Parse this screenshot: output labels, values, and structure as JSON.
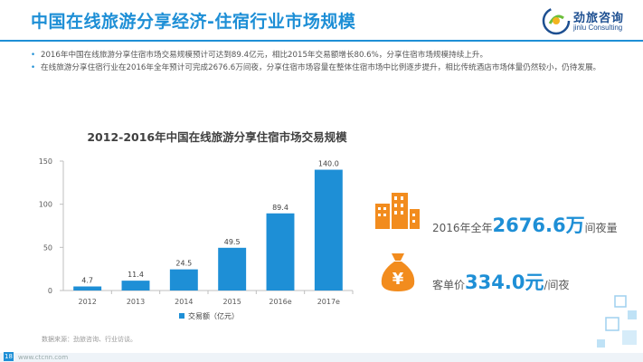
{
  "header": {
    "title": "中国在线旅游分享经济-住宿行业市场规模",
    "logo_name": "劲旅咨询",
    "logo_sub": "jinlu Consulting"
  },
  "bullets": [
    "2016年中国在线旅游分享住宿市场交易规模预计可达到89.4亿元，相比2015年交易额增长80.6%，分享住宿市场规模持续上升。",
    "在线旅游分享住宿行业在2016年全年预计可完成2676.6万间夜，分享住宿市场容量在整体住宿市场中比例逐步提升，相比传统酒店市场体量仍然较小，仍待发展。"
  ],
  "chart_data": {
    "type": "bar",
    "title": "2012-2016年中国在线旅游分享住宿市场交易规模",
    "categories": [
      "2012",
      "2013",
      "2014",
      "2015",
      "2016e",
      "2017e"
    ],
    "series": [
      {
        "name": "交易额（亿元）",
        "values": [
          4.7,
          11.4,
          24.5,
          49.5,
          89.4,
          140.0
        ]
      }
    ],
    "value_labels": [
      "4.7",
      "11.4",
      "24.5",
      "49.5",
      "89.4",
      "140.0"
    ],
    "yticks": [
      "0",
      "50",
      "100",
      "150"
    ],
    "ylim": [
      0,
      150
    ],
    "xlabel": "",
    "ylabel": "",
    "legend_position": "bottom-center",
    "grid": false,
    "bar_color": "#1e8fd6"
  },
  "stats": {
    "nights_prefix": "2016年全年",
    "nights_value": "2676.6万",
    "nights_suffix": "间夜量",
    "price_prefix": "客单价",
    "price_value": "334.0元",
    "price_suffix": "/间夜"
  },
  "icons": {
    "buildings": "buildings-icon",
    "money_bag": "money-bag-icon",
    "money_symbol": "¥"
  },
  "footer": {
    "source": "数据来源：劲旅咨询、行业访谈。",
    "page": "18",
    "url": "www.ctcnn.com"
  },
  "colors": {
    "accent": "#1e8fd6",
    "orange": "#f28c1e",
    "navy": "#1d4f91"
  }
}
